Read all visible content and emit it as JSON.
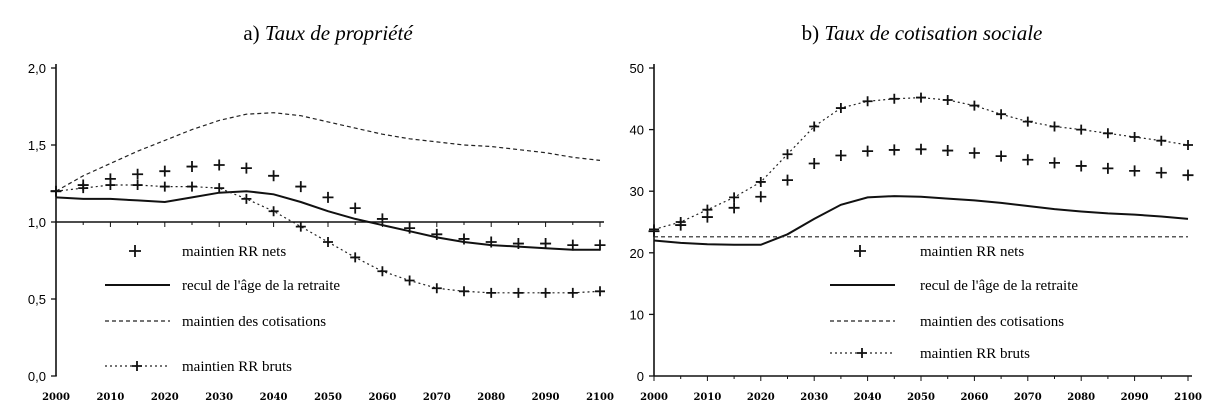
{
  "chart_data": [
    {
      "type": "line",
      "title_prefix": "a) ",
      "title": "Taux de propriété",
      "xlabel": "",
      "ylabel": "",
      "xlim": [
        2000,
        2100
      ],
      "ylim": [
        0,
        2
      ],
      "x_ticks": [
        2000,
        2010,
        2020,
        2030,
        2040,
        2050,
        2060,
        2070,
        2080,
        2090,
        2100
      ],
      "y_ticks": [
        0,
        0.5,
        1,
        1.5,
        2
      ],
      "y_tick_labels": [
        "0,0",
        "0,5",
        "1,0",
        "1,5",
        "2,0"
      ],
      "x_axis_at": 1.0,
      "grid": false,
      "legend_position": "bottom-left",
      "series": [
        {
          "name": "maintien RR nets",
          "style": "plus-markers",
          "x": [
            2000,
            2005,
            2010,
            2015,
            2020,
            2025,
            2030,
            2035,
            2040,
            2045,
            2050,
            2055,
            2060,
            2065,
            2070,
            2075,
            2080,
            2085,
            2090,
            2095,
            2100
          ],
          "y": [
            1.2,
            1.24,
            1.28,
            1.31,
            1.33,
            1.36,
            1.37,
            1.35,
            1.3,
            1.23,
            1.16,
            1.09,
            1.02,
            0.96,
            0.92,
            0.89,
            0.87,
            0.86,
            0.86,
            0.85,
            0.85
          ]
        },
        {
          "name": "recul de l'âge de la retraite",
          "style": "solid",
          "x": [
            2000,
            2005,
            2010,
            2015,
            2020,
            2025,
            2030,
            2035,
            2040,
            2045,
            2050,
            2055,
            2060,
            2065,
            2070,
            2075,
            2080,
            2085,
            2090,
            2095,
            2100
          ],
          "y": [
            1.16,
            1.15,
            1.15,
            1.14,
            1.13,
            1.16,
            1.19,
            1.2,
            1.18,
            1.13,
            1.07,
            1.02,
            0.98,
            0.94,
            0.9,
            0.87,
            0.85,
            0.84,
            0.83,
            0.82,
            0.82
          ]
        },
        {
          "name": "maintien des cotisations",
          "style": "dashed",
          "x": [
            2000,
            2005,
            2010,
            2015,
            2020,
            2025,
            2030,
            2035,
            2040,
            2045,
            2050,
            2055,
            2060,
            2065,
            2070,
            2075,
            2080,
            2085,
            2090,
            2095,
            2100
          ],
          "y": [
            1.2,
            1.3,
            1.38,
            1.46,
            1.53,
            1.6,
            1.66,
            1.7,
            1.71,
            1.69,
            1.65,
            1.61,
            1.57,
            1.54,
            1.52,
            1.5,
            1.49,
            1.47,
            1.45,
            1.42,
            1.4
          ]
        },
        {
          "name": "maintien RR bruts",
          "style": "dotted-plus",
          "x": [
            2000,
            2005,
            2010,
            2015,
            2020,
            2025,
            2030,
            2035,
            2040,
            2045,
            2050,
            2055,
            2060,
            2065,
            2070,
            2075,
            2080,
            2085,
            2090,
            2095,
            2100
          ],
          "y": [
            1.2,
            1.22,
            1.24,
            1.24,
            1.23,
            1.23,
            1.22,
            1.15,
            1.07,
            0.97,
            0.87,
            0.77,
            0.68,
            0.62,
            0.57,
            0.55,
            0.54,
            0.54,
            0.54,
            0.54,
            0.55
          ]
        }
      ]
    },
    {
      "type": "line",
      "title_prefix": "b) ",
      "title": "Taux de cotisation sociale",
      "xlabel": "",
      "ylabel": "",
      "xlim": [
        2000,
        2100
      ],
      "ylim": [
        0,
        50
      ],
      "x_ticks": [
        2000,
        2010,
        2020,
        2030,
        2040,
        2050,
        2060,
        2070,
        2080,
        2090,
        2100
      ],
      "y_ticks": [
        0,
        10,
        20,
        30,
        40,
        50
      ],
      "y_tick_labels": [
        "0",
        "10",
        "20",
        "30",
        "40",
        "50"
      ],
      "x_axis_at": 0,
      "grid": false,
      "legend_position": "bottom-right",
      "series": [
        {
          "name": "maintien RR nets",
          "style": "plus-markers",
          "x": [
            2000,
            2005,
            2010,
            2015,
            2020,
            2025,
            2030,
            2035,
            2040,
            2045,
            2050,
            2055,
            2060,
            2065,
            2070,
            2075,
            2080,
            2085,
            2090,
            2095,
            2100
          ],
          "y": [
            23.5,
            24.5,
            25.8,
            27.3,
            29.1,
            31.8,
            34.5,
            35.8,
            36.5,
            36.7,
            36.8,
            36.6,
            36.2,
            35.7,
            35.1,
            34.6,
            34.1,
            33.7,
            33.3,
            33.0,
            32.6
          ]
        },
        {
          "name": "recul de l'âge de la retraite",
          "style": "solid",
          "x": [
            2000,
            2005,
            2010,
            2015,
            2020,
            2025,
            2030,
            2035,
            2040,
            2045,
            2050,
            2055,
            2060,
            2065,
            2070,
            2075,
            2080,
            2085,
            2090,
            2095,
            2100
          ],
          "y": [
            22.0,
            21.6,
            21.4,
            21.3,
            21.3,
            23.0,
            25.5,
            27.8,
            29.0,
            29.2,
            29.1,
            28.8,
            28.5,
            28.1,
            27.6,
            27.1,
            26.7,
            26.4,
            26.2,
            25.9,
            25.5
          ]
        },
        {
          "name": "maintien des cotisations",
          "style": "dashed",
          "x": [
            2000,
            2100
          ],
          "y": [
            22.6,
            22.6
          ]
        },
        {
          "name": "maintien RR bruts",
          "style": "dotted-plus",
          "x": [
            2000,
            2005,
            2010,
            2015,
            2020,
            2025,
            2030,
            2035,
            2040,
            2045,
            2050,
            2055,
            2060,
            2065,
            2070,
            2075,
            2080,
            2085,
            2090,
            2095,
            2100
          ],
          "y": [
            23.8,
            25.0,
            27.0,
            29.0,
            31.5,
            36.0,
            40.5,
            43.5,
            44.6,
            45.0,
            45.2,
            44.8,
            43.9,
            42.5,
            41.3,
            40.5,
            40.0,
            39.4,
            38.8,
            38.2,
            37.5
          ]
        }
      ]
    }
  ]
}
